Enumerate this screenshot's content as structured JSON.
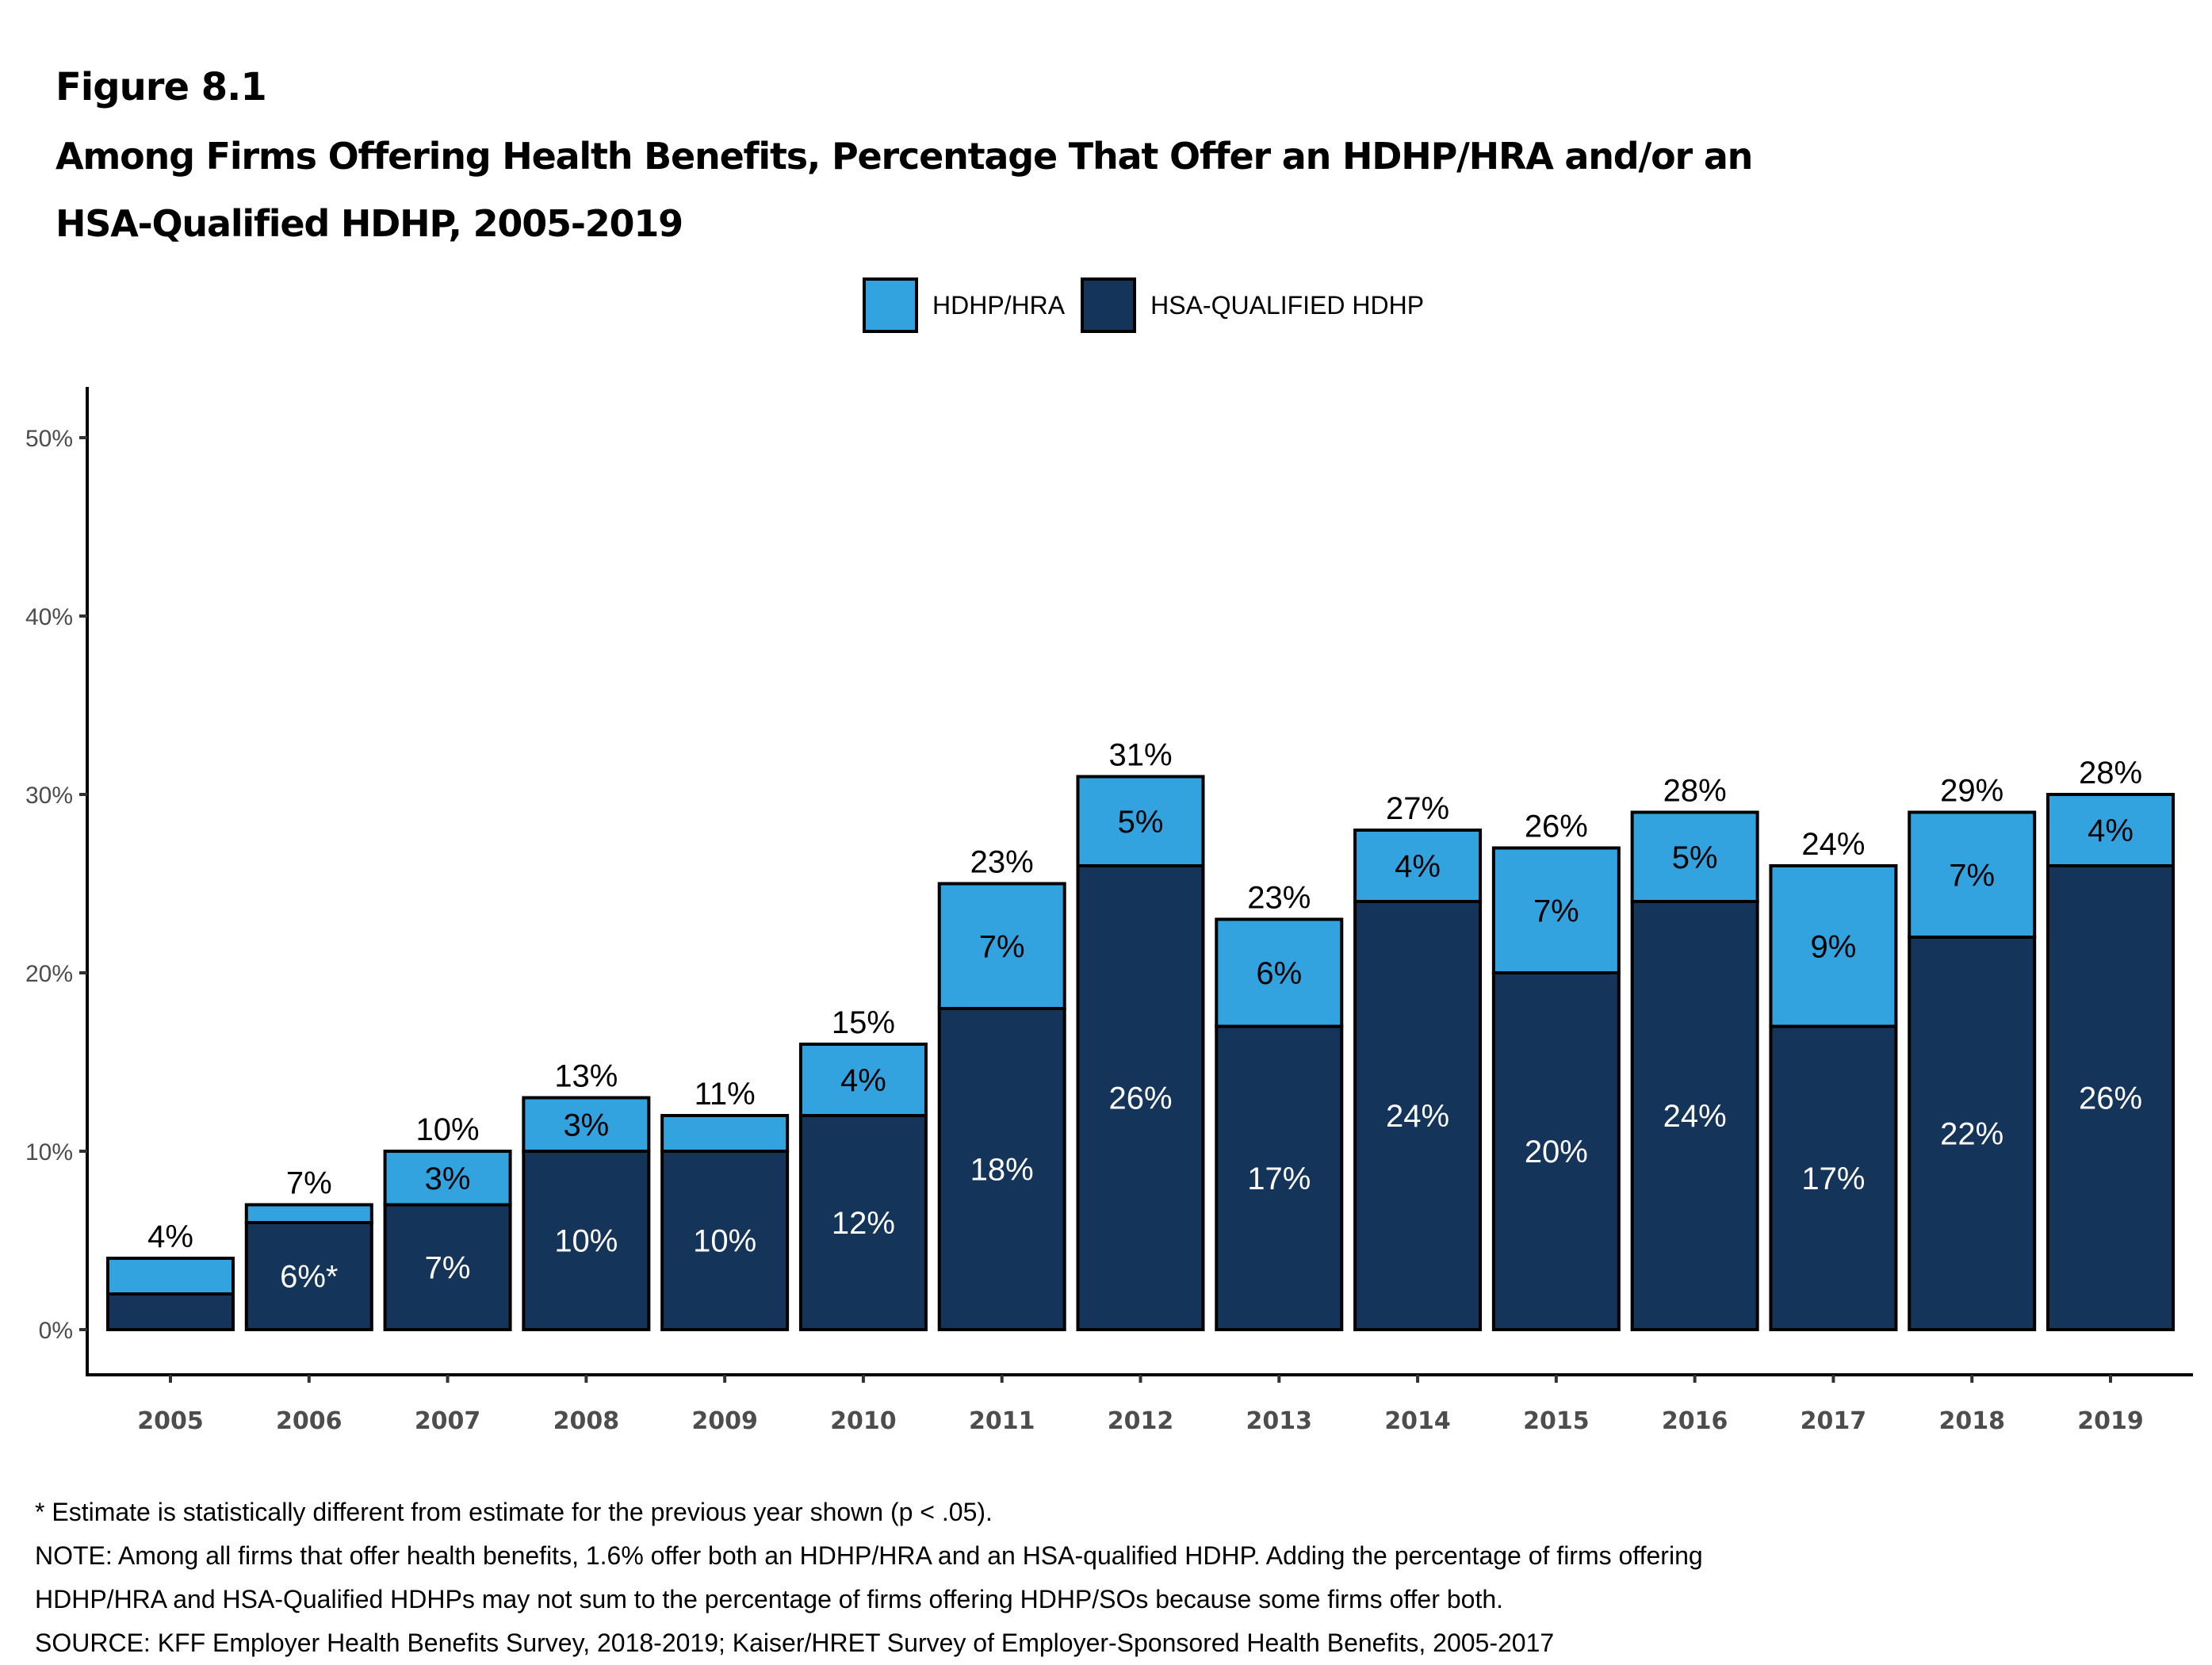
{
  "figure_label": "Figure 8.1",
  "title_lines": [
    "Among Firms Offering Health Benefits, Percentage That Offer an HDHP/HRA and/or an",
    "HSA-Qualified HDHP, 2005-2019"
  ],
  "legend": [
    {
      "name": "HDHP/HRA",
      "color": "#33a3e0"
    },
    {
      "name": "HSA-QUALIFIED HDHP",
      "color": "#15345a"
    }
  ],
  "notes": [
    "* Estimate is statistically different from estimate for the previous year shown (p < .05).",
    "NOTE: Among all firms that offer health benefits, 1.6% offer both an HDHP/HRA and an HSA-qualified HDHP. Adding the percentage of firms offering",
    "HDHP/HRA and HSA-Qualified HDHPs may not sum to the percentage of firms offering HDHP/SOs because some firms offer both.",
    "SOURCE: KFF Employer Health Benefits Survey, 2018-2019; Kaiser/HRET Survey of Employer-Sponsored Health Benefits, 2005-2017"
  ],
  "chart_data": {
    "type": "bar",
    "stacked": true,
    "title": "Among Firms Offering Health Benefits, Percentage That Offer an HDHP/HRA and/or an HSA-Qualified HDHP, 2005-2019",
    "xlabel": "",
    "ylabel": "",
    "ylim": [
      0,
      50
    ],
    "yticks": [
      0,
      10,
      20,
      30,
      40,
      50
    ],
    "ytick_labels": [
      "0%",
      "10%",
      "20%",
      "30%",
      "40%",
      "50%"
    ],
    "grid": false,
    "legend_position": "top-center",
    "categories": [
      "2005",
      "2006",
      "2007",
      "2008",
      "2009",
      "2010",
      "2011",
      "2012",
      "2013",
      "2014",
      "2015",
      "2016",
      "2017",
      "2018",
      "2019"
    ],
    "series": [
      {
        "name": "HSA-QUALIFIED HDHP",
        "color": "#15345a",
        "values": [
          2,
          6,
          7,
          10,
          10,
          12,
          18,
          26,
          17,
          24,
          20,
          24,
          17,
          22,
          26
        ],
        "labels": [
          "",
          "6%*",
          "7%",
          "10%",
          "10%",
          "12%",
          "18%",
          "26%",
          "17%",
          "24%",
          "20%",
          "24%",
          "17%",
          "22%",
          "26%"
        ]
      },
      {
        "name": "HDHP/HRA",
        "color": "#33a3e0",
        "values": [
          2,
          1,
          3,
          3,
          2,
          4,
          7,
          5,
          6,
          4,
          7,
          5,
          9,
          7,
          4
        ],
        "labels": [
          "",
          "",
          "3%",
          "3%",
          "",
          "4%",
          "7%",
          "5%",
          "6%",
          "4%",
          "7%",
          "5%",
          "9%",
          "7%",
          "4%"
        ]
      }
    ],
    "totals": [
      "4%",
      "7%",
      "10%",
      "13%",
      "11%",
      "15%",
      "23%",
      "31%",
      "23%",
      "27%",
      "26%",
      "28%",
      "24%",
      "29%",
      "28%"
    ]
  }
}
